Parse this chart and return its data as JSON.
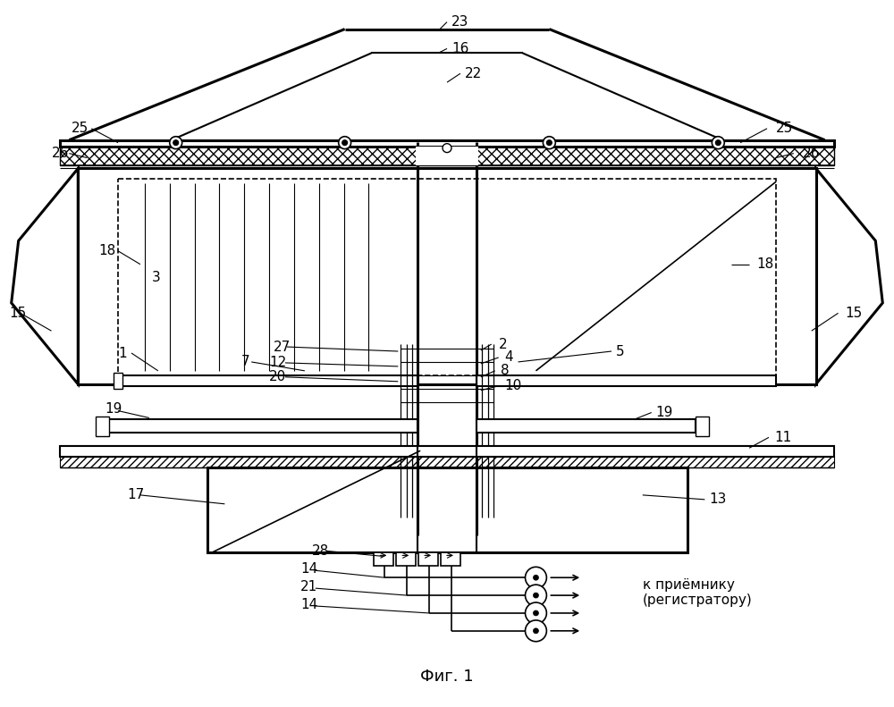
{
  "title": "Фиг. 1",
  "caption": "к приёмнику\n(регистратору)",
  "bg_color": "#ffffff",
  "lw_thin": 0.8,
  "lw_med": 1.5,
  "lw_thick": 2.2,
  "fs": 11
}
